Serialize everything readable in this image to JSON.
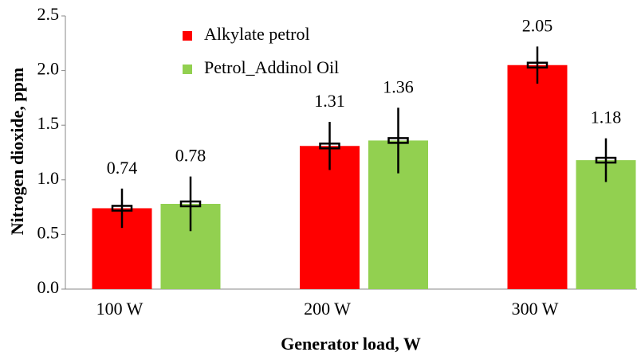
{
  "chart_data": {
    "type": "bar",
    "categories": [
      "100 W",
      "200 W",
      "300 W"
    ],
    "series": [
      {
        "name": "Alkylate petrol",
        "color": "#ff0000",
        "values": [
          0.74,
          1.31,
          2.05
        ],
        "errors": [
          0.18,
          0.22,
          0.17
        ]
      },
      {
        "name": "Petrol_Addinol Oil",
        "color": "#92d050",
        "values": [
          0.78,
          1.36,
          1.18
        ],
        "errors": [
          0.25,
          0.3,
          0.2
        ]
      }
    ],
    "xlabel": "Generator load, W",
    "ylabel": "Nitrogen dioxide, ppm",
    "ylim": [
      0,
      2.5
    ],
    "yticks": [
      {
        "value": 0,
        "label": "0.0"
      },
      0.5,
      {
        "value": 1,
        "label": "1.0"
      },
      1.5,
      {
        "value": 2,
        "label": "2.0"
      },
      2.5
    ],
    "grid": false,
    "legend": "top-left"
  }
}
